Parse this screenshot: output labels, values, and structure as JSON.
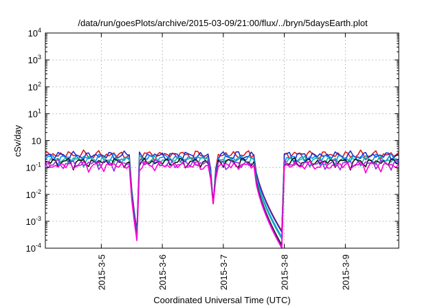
{
  "chart_data": {
    "type": "line",
    "title": "/data/run/goesPlots/archive/2015-03-09/21:00/flux/../bryn/5daysEarth.plot",
    "xlabel": "Coordinated Universal Time (UTC)",
    "ylabel": "cSv/day",
    "yscale": "log",
    "ylim": [
      0.0001,
      10000
    ],
    "y_ticks": [
      {
        "base": "10",
        "exp": "-4"
      },
      {
        "base": "10",
        "exp": "-3"
      },
      {
        "base": "10",
        "exp": "-2"
      },
      {
        "base": "10",
        "exp": "-1"
      },
      {
        "base": "10",
        "exp": ""
      },
      {
        "base": "10",
        "exp": "1"
      },
      {
        "base": "10",
        "exp": "2"
      },
      {
        "base": "10",
        "exp": "3"
      },
      {
        "base": "10",
        "exp": "4"
      }
    ],
    "y_tick_values": [
      -4,
      -3,
      -2,
      -1,
      0,
      1,
      2,
      3,
      4
    ],
    "xlim": [
      "2015-03-04 02:00",
      "2015-03-09 21:00"
    ],
    "x_ticks": [
      "2015-3-5",
      "2015-3-6",
      "2015-3-7",
      "2015-3-8",
      "2015-3-9"
    ],
    "x_tick_dates": [
      "2015-03-05",
      "2015-03-06",
      "2015-03-07",
      "2015-03-08",
      "2015-03-09"
    ],
    "grid": true,
    "series": [
      {
        "color": "#e0161a",
        "baseline": 0.3,
        "minimums": [
          [
            "2015-03-05 14:00",
            0.00044
          ],
          [
            "2015-03-06 20:00",
            0.0045
          ],
          [
            "2015-03-07 23:00",
            0.00044
          ]
        ]
      },
      {
        "color": "#1e2cc8",
        "baseline": 0.28,
        "minimums": [
          [
            "2015-03-05 14:00",
            0.0004
          ],
          [
            "2015-03-06 20:00",
            0.0045
          ],
          [
            "2015-03-07 23:00",
            0.0004
          ]
        ]
      },
      {
        "color": "#0090ff",
        "baseline": 0.22,
        "minimums": [
          [
            "2015-03-05 14:00",
            0.00032
          ],
          [
            "2015-03-06 20:00",
            0.0045
          ],
          [
            "2015-03-07 23:00",
            0.00026
          ]
        ]
      },
      {
        "color": "#1ab79c",
        "baseline": 0.19,
        "minimums": [
          [
            "2015-03-05 14:00",
            0.00028
          ],
          [
            "2015-03-06 20:00",
            0.0045
          ],
          [
            "2015-03-07 23:00",
            0.00022
          ]
        ]
      },
      {
        "color": "#111111",
        "baseline": 0.16,
        "minimums": [
          [
            "2015-03-05 14:00",
            0.00026
          ],
          [
            "2015-03-06 20:00",
            0.0045
          ],
          [
            "2015-03-07 23:00",
            0.00013
          ]
        ]
      },
      {
        "color": "#9b2bd8",
        "baseline": 0.14,
        "minimums": [
          [
            "2015-03-05 14:00",
            0.00024
          ],
          [
            "2015-03-06 20:00",
            0.0045
          ],
          [
            "2015-03-07 23:00",
            0.00011
          ]
        ]
      },
      {
        "color": "#ff00d2",
        "baseline": 0.12,
        "minimums": [
          [
            "2015-03-05 14:00",
            0.00019
          ],
          [
            "2015-03-06 20:00",
            0.0045
          ],
          [
            "2015-03-07 23:00",
            0.0001
          ]
        ]
      }
    ]
  }
}
